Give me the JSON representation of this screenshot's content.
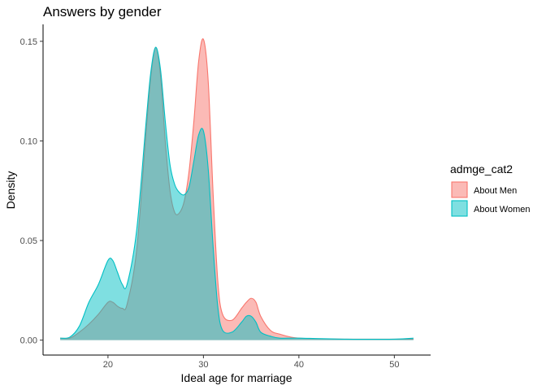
{
  "chart_data": {
    "type": "area",
    "subtype": "density",
    "title": "Answers by gender",
    "xlabel": "Ideal age for marriage",
    "ylabel": "Density",
    "xlim": [
      13.2,
      53.8
    ],
    "ylim": [
      -0.0075,
      0.1585
    ],
    "xticks": [
      20,
      30,
      40,
      50
    ],
    "yticks": [
      0.0,
      0.05,
      0.1,
      0.15
    ],
    "ytick_labels": [
      "0.00",
      "0.05",
      "0.10",
      "0.15"
    ],
    "grid": false,
    "legend": {
      "title": "admge_cat2",
      "position": "right"
    },
    "series": [
      {
        "name": "About Men",
        "stroke": "#F8766D",
        "fill": "#F8766D",
        "fill_opacity": 0.5,
        "points": [
          [
            15,
            0.001
          ],
          [
            16,
            0.001
          ],
          [
            17,
            0.004
          ],
          [
            18,
            0.008
          ],
          [
            19,
            0.013
          ],
          [
            20,
            0.019
          ],
          [
            20.5,
            0.019
          ],
          [
            21,
            0.017
          ],
          [
            21.5,
            0.016
          ],
          [
            22,
            0.018
          ],
          [
            23,
            0.045
          ],
          [
            24,
            0.105
          ],
          [
            24.5,
            0.133
          ],
          [
            25,
            0.147
          ],
          [
            25.5,
            0.133
          ],
          [
            26,
            0.1
          ],
          [
            26.5,
            0.075
          ],
          [
            27,
            0.064
          ],
          [
            27.5,
            0.064
          ],
          [
            28,
            0.07
          ],
          [
            28.5,
            0.085
          ],
          [
            29,
            0.11
          ],
          [
            29.5,
            0.14
          ],
          [
            30,
            0.151
          ],
          [
            30.5,
            0.13
          ],
          [
            31,
            0.075
          ],
          [
            31.5,
            0.03
          ],
          [
            32,
            0.013
          ],
          [
            33,
            0.01
          ],
          [
            34,
            0.016
          ],
          [
            34.5,
            0.019
          ],
          [
            35,
            0.021
          ],
          [
            35.5,
            0.019
          ],
          [
            36,
            0.012
          ],
          [
            37,
            0.005
          ],
          [
            38,
            0.003
          ],
          [
            40,
            0.001
          ],
          [
            45,
            0.0005
          ],
          [
            50,
            0.0005
          ],
          [
            52,
            0.0005
          ]
        ]
      },
      {
        "name": "About Women",
        "stroke": "#00BFC4",
        "fill": "#00BFC4",
        "fill_opacity": 0.5,
        "points": [
          [
            15,
            0.001
          ],
          [
            16,
            0.0015
          ],
          [
            17,
            0.007
          ],
          [
            18,
            0.019
          ],
          [
            19,
            0.028
          ],
          [
            20,
            0.04
          ],
          [
            20.5,
            0.04
          ],
          [
            21,
            0.034
          ],
          [
            21.5,
            0.028
          ],
          [
            22,
            0.028
          ],
          [
            23,
            0.055
          ],
          [
            24,
            0.11
          ],
          [
            24.5,
            0.135
          ],
          [
            25,
            0.147
          ],
          [
            25.5,
            0.136
          ],
          [
            26,
            0.11
          ],
          [
            26.5,
            0.088
          ],
          [
            27,
            0.078
          ],
          [
            27.5,
            0.074
          ],
          [
            28,
            0.073
          ],
          [
            28.5,
            0.077
          ],
          [
            29,
            0.09
          ],
          [
            29.5,
            0.103
          ],
          [
            30,
            0.105
          ],
          [
            30.5,
            0.086
          ],
          [
            31,
            0.048
          ],
          [
            31.5,
            0.017
          ],
          [
            32,
            0.005
          ],
          [
            33,
            0.004
          ],
          [
            34,
            0.009
          ],
          [
            34.5,
            0.012
          ],
          [
            35,
            0.012
          ],
          [
            35.5,
            0.009
          ],
          [
            36,
            0.004
          ],
          [
            37,
            0.002
          ],
          [
            38,
            0.001
          ],
          [
            40,
            0.001
          ],
          [
            45,
            0.0005
          ],
          [
            50,
            0.0005
          ],
          [
            52,
            0.001
          ]
        ]
      }
    ]
  }
}
